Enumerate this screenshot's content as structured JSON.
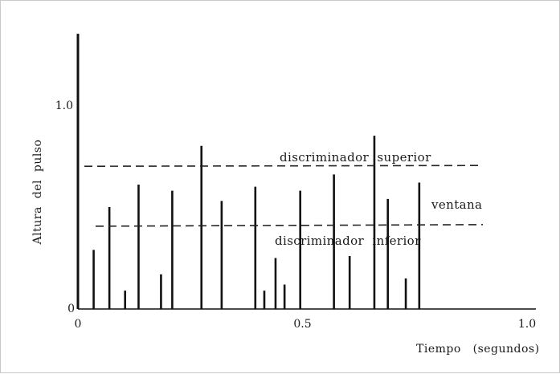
{
  "chart_data": {
    "type": "bar",
    "xlabel": "Tiempo   (segundos)",
    "ylabel": "Altura  del  pulso",
    "xlim": [
      0,
      1.0
    ],
    "ylim": [
      0,
      1.35
    ],
    "x_ticks": [
      {
        "value": 0,
        "label": "0"
      },
      {
        "value": 0.5,
        "label": "0.5"
      },
      {
        "value": 1.0,
        "label": "1.0"
      }
    ],
    "y_ticks": [
      {
        "value": 0,
        "label": "0"
      },
      {
        "value": 1.0,
        "label": "1.0"
      }
    ],
    "pulses": [
      {
        "x": 0.0,
        "y": 1.35
      },
      {
        "x": 0.035,
        "y": 0.29
      },
      {
        "x": 0.07,
        "y": 0.5
      },
      {
        "x": 0.105,
        "y": 0.09
      },
      {
        "x": 0.135,
        "y": 0.61
      },
      {
        "x": 0.185,
        "y": 0.17
      },
      {
        "x": 0.21,
        "y": 0.58
      },
      {
        "x": 0.275,
        "y": 0.8
      },
      {
        "x": 0.32,
        "y": 0.53
      },
      {
        "x": 0.395,
        "y": 0.6
      },
      {
        "x": 0.415,
        "y": 0.09
      },
      {
        "x": 0.44,
        "y": 0.25
      },
      {
        "x": 0.46,
        "y": 0.12
      },
      {
        "x": 0.495,
        "y": 0.58
      },
      {
        "x": 0.57,
        "y": 0.66
      },
      {
        "x": 0.605,
        "y": 0.26
      },
      {
        "x": 0.66,
        "y": 0.85
      },
      {
        "x": 0.69,
        "y": 0.54
      },
      {
        "x": 0.73,
        "y": 0.15
      },
      {
        "x": 0.76,
        "y": 0.62
      }
    ],
    "thresholds": [
      {
        "name": "upper",
        "label": "discriminador  superior",
        "y": 0.7
      },
      {
        "name": "lower",
        "label": "discriminador  inferior",
        "y": 0.41
      }
    ],
    "window_label": "ventana",
    "grid": false,
    "legend": "none"
  }
}
